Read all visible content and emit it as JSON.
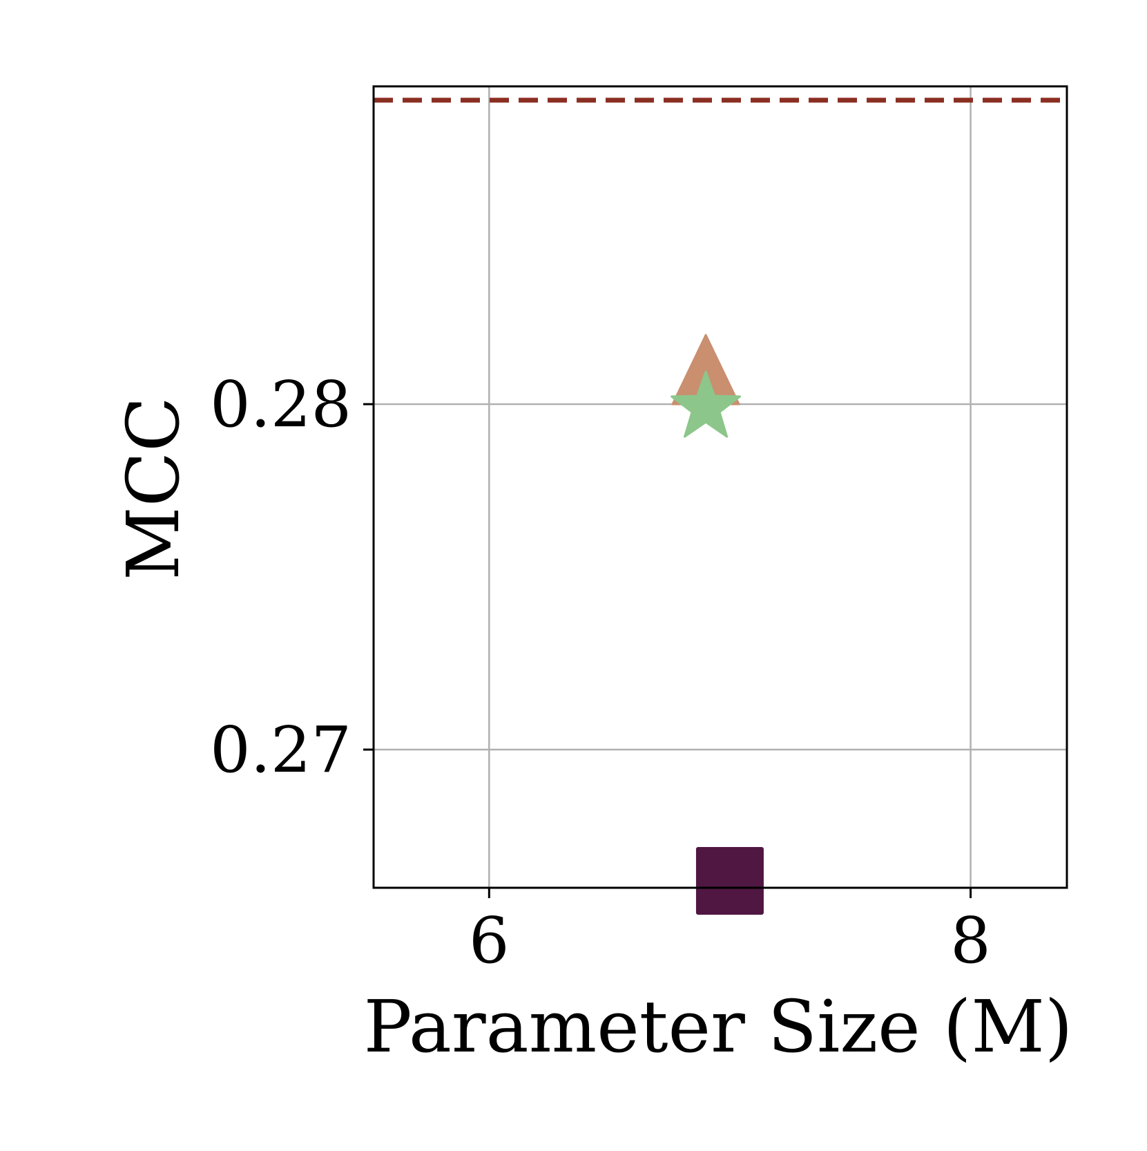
{
  "chart_data": {
    "type": "scatter",
    "title": "",
    "xlabel": "Parameter Size (M)",
    "ylabel": "MCC",
    "xlim": [
      5.52,
      8.4
    ],
    "ylim": [
      0.266,
      0.2892
    ],
    "xticks": [
      6,
      8
    ],
    "xtick_labels": [
      "6",
      "8"
    ],
    "yticks": [
      0.27,
      0.28
    ],
    "ytick_labels": [
      "0.27",
      "0.28"
    ],
    "grid": true,
    "legend": "none",
    "series": [
      {
        "marker": "triangle",
        "color": "#c98f6f",
        "x": [
          6.9
        ],
        "y": [
          0.2801
        ]
      },
      {
        "marker": "star",
        "color": "#8dc68a",
        "x": [
          6.9
        ],
        "y": [
          0.2799
        ]
      },
      {
        "marker": "square",
        "color": "#501743",
        "x": [
          7.0
        ],
        "y": [
          0.2662
        ]
      }
    ],
    "reference_lines": [
      {
        "orientation": "horizontal",
        "y": 0.2888,
        "style": "dashed",
        "color": "#8b2e22"
      }
    ]
  }
}
